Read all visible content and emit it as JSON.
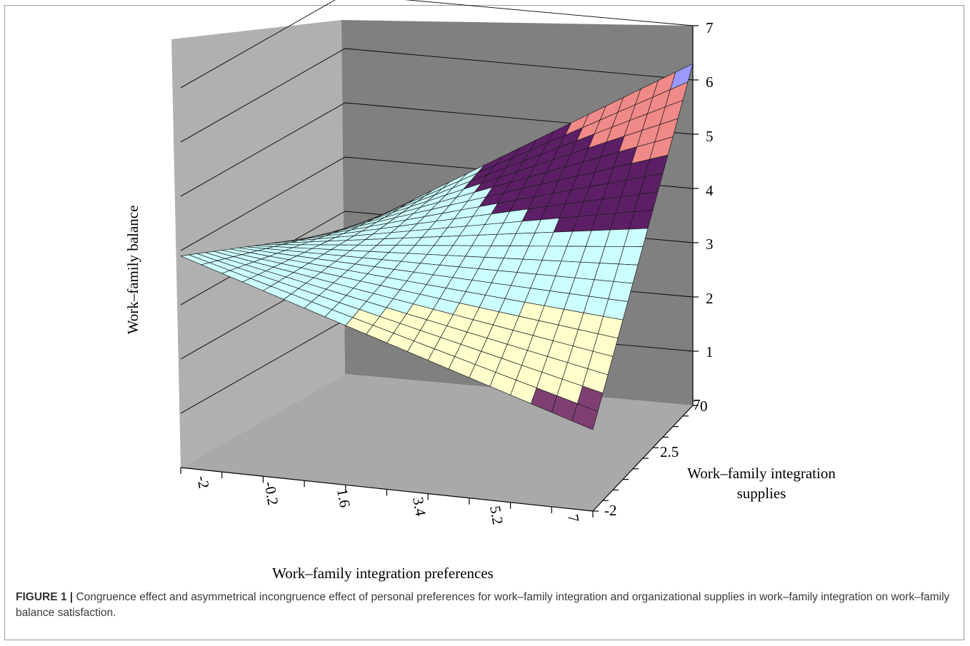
{
  "chart_data": {
    "type": "surface",
    "zlabel": "Work–family balance",
    "xlabel": "Work–family integration preferences",
    "ylabel_line1": "Work–family integration",
    "ylabel_line2": "supplies",
    "x_ticks": [
      "-2",
      "-0.2",
      "1.6",
      "3.4",
      "5.2",
      "7"
    ],
    "y_ticks": [
      "-2",
      "2.5",
      "7"
    ],
    "z_ticks": [
      "0",
      "1",
      "2",
      "3",
      "4",
      "5",
      "6",
      "7"
    ],
    "xlim": [
      -2,
      7
    ],
    "ylim": [
      -2,
      7
    ],
    "zlim": [
      0,
      7
    ],
    "grid": true,
    "surface": {
      "x": [
        -2,
        7
      ],
      "y": [
        -2,
        7
      ],
      "z_at": {
        "x=-2,y=-2": 3.9,
        "x=7,y=-2": 1.5,
        "x=-2,y=7": 2.6,
        "x=7,y=7": 6.3
      }
    },
    "color_bands": [
      {
        "range": [
          0,
          1
        ],
        "color": "#9999ff"
      },
      {
        "range": [
          1,
          2
        ],
        "color": "#7f3f72"
      },
      {
        "range": [
          2,
          3
        ],
        "color": "#ffffcc"
      },
      {
        "range": [
          3,
          4
        ],
        "color": "#ccffff"
      },
      {
        "range": [
          4,
          5
        ],
        "color": "#5c1f66"
      },
      {
        "range": [
          5,
          6
        ],
        "color": "#f08a88"
      },
      {
        "range": [
          6,
          7
        ],
        "color": "#9999ff"
      }
    ],
    "wall_colors": {
      "left": "#b0b0b0",
      "back": "#808080",
      "floor": "#a9a9a9"
    }
  },
  "caption": {
    "lead": "FIGURE 1 |",
    "text": " Congruence effect and asymmetrical incongruence effect of personal preferences for work–family integration and organizational supplies in work–family integration on work–family balance satisfaction."
  }
}
